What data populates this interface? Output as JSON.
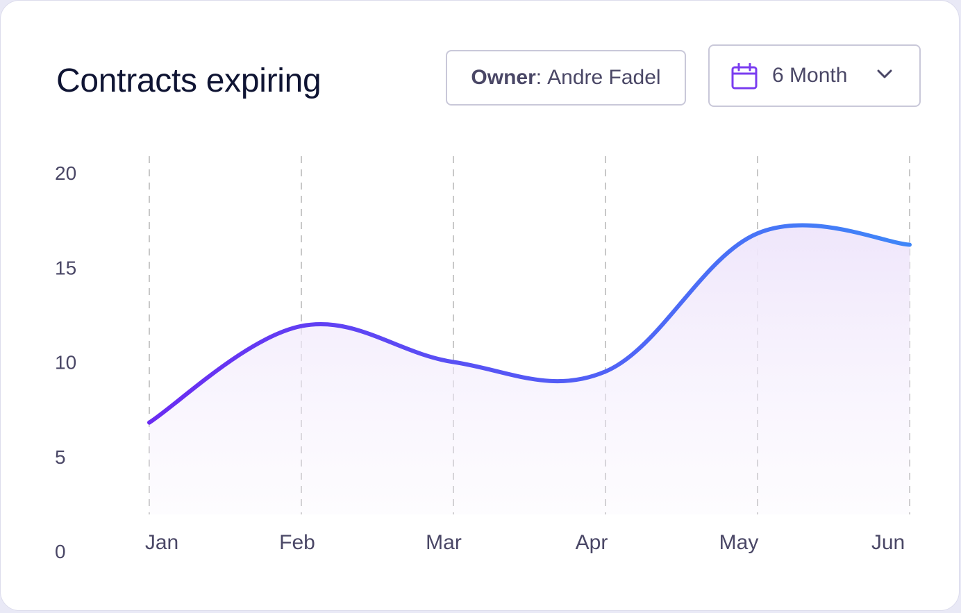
{
  "header": {
    "title": "Contracts expiring",
    "owner_key": "Owner",
    "owner_sep": ":",
    "owner_value": "Andre Fadel",
    "period_label": "6 Month",
    "period_icon": "calendar-icon",
    "dropdown_icon": "chevron-down-icon"
  },
  "colors": {
    "line_start": "#6a2cf2",
    "line_end": "#3f86f8",
    "fill": "#efe6fb",
    "grid": "#c8c8c8",
    "text": "#4a4766",
    "title": "#0f1433",
    "calendar": "#7a3cf0"
  },
  "chart_data": {
    "type": "area",
    "x": [
      "Jan",
      "Feb",
      "Mar",
      "Apr",
      "May",
      "Jun"
    ],
    "y": [
      6.8,
      11.9,
      10.0,
      9.5,
      16.8,
      16.2
    ],
    "ylim": [
      0,
      20
    ],
    "yticks": [
      0,
      5,
      10,
      15,
      20
    ],
    "grid": "vertical dashed at each month",
    "series": [
      {
        "values": [
          6.8,
          11.9,
          10.0,
          9.5,
          16.8,
          16.2
        ]
      }
    ]
  }
}
